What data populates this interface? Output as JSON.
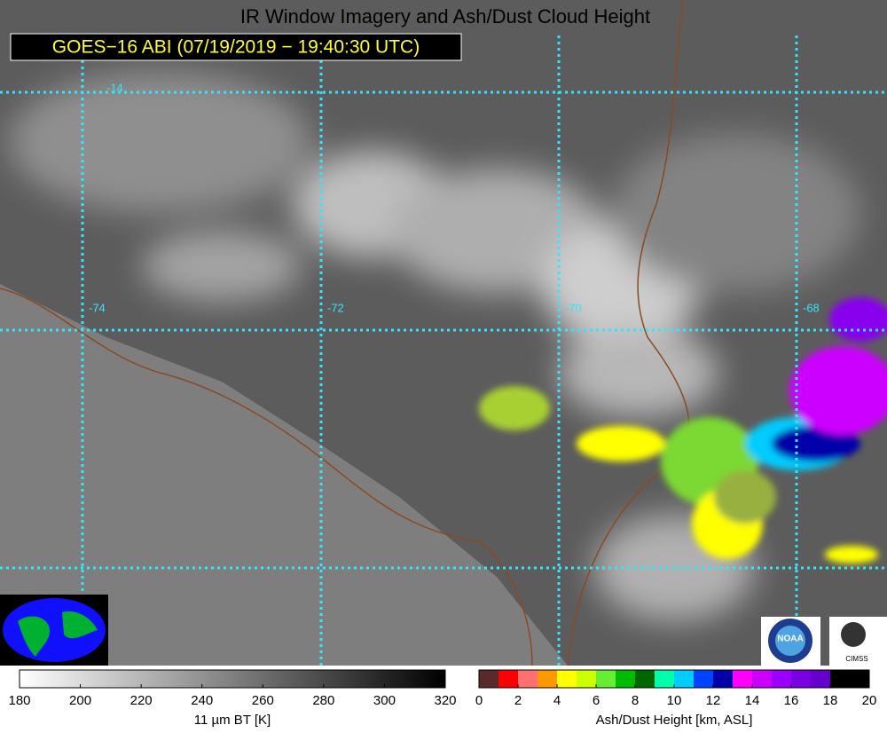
{
  "title": "IR Window Imagery and Ash/Dust Cloud Height",
  "timestamp": "GOES−16 ABI (07/19/2019 − 19:40:30 UTC)",
  "grid_labels": {
    "latitude": [
      "-14"
    ],
    "longitude": [
      "-74",
      "-72",
      "-70",
      "-68"
    ]
  },
  "logos": [
    "NOAA",
    "CIMSS"
  ],
  "colorbars": [
    {
      "label": "11 µm BT [K]",
      "range": [
        180,
        320
      ],
      "ticks": [
        180,
        200,
        220,
        240,
        260,
        280,
        300,
        320
      ],
      "colors": [
        "#ffffff",
        "#000000"
      ]
    },
    {
      "label": "Ash/Dust Height [km, ASL]",
      "range": [
        0,
        20
      ],
      "ticks": [
        0,
        2,
        4,
        6,
        8,
        10,
        12,
        14,
        16,
        18,
        20
      ],
      "colors": [
        "#5a2a2a",
        "#ff0000",
        "#ff7070",
        "#ff9900",
        "#ffff00",
        "#ccff00",
        "#66ee33",
        "#00bb00",
        "#006600",
        "#00ffaa",
        "#00ccff",
        "#0044ff",
        "#0000aa",
        "#ff00ff",
        "#cc00ff",
        "#9900ff",
        "#7a00e0",
        "#6600cc",
        "#000000",
        "#000000"
      ]
    }
  ]
}
